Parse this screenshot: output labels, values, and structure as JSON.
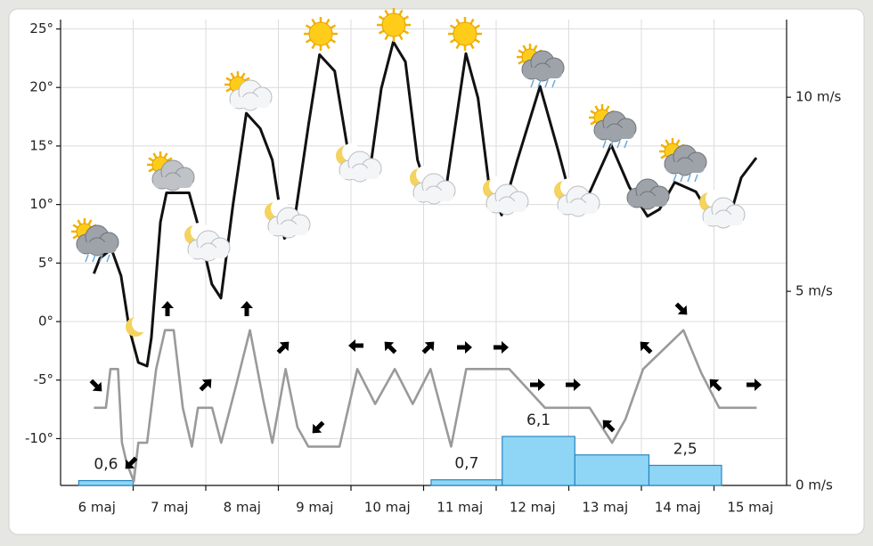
{
  "chart_data": {
    "type": "line",
    "xlim": [
      0,
      240
    ],
    "xticks": [
      {
        "value": 12,
        "label": "6 maj"
      },
      {
        "value": 36,
        "label": "7 maj"
      },
      {
        "value": 60,
        "label": "8 maj"
      },
      {
        "value": 84,
        "label": "9 maj"
      },
      {
        "value": 108,
        "label": "10 maj"
      },
      {
        "value": 132,
        "label": "11 maj"
      },
      {
        "value": 156,
        "label": "12 maj"
      },
      {
        "value": 180,
        "label": "13 maj"
      },
      {
        "value": 204,
        "label": "14 maj"
      },
      {
        "value": 228,
        "label": "15 maj"
      }
    ],
    "xgrid": [
      24,
      48,
      72,
      96,
      120,
      144,
      168,
      192,
      216
    ],
    "ylim": [
      -14,
      25.8
    ],
    "yticks": [
      {
        "value": 25,
        "label": "25°"
      },
      {
        "value": 20,
        "label": "20°"
      },
      {
        "value": 15,
        "label": "15°"
      },
      {
        "value": 10,
        "label": "10°"
      },
      {
        "value": 5,
        "label": "5°"
      },
      {
        "value": 0,
        "label": "0°"
      },
      {
        "value": -5,
        "label": "-5°"
      },
      {
        "value": -10,
        "label": "-10°"
      }
    ],
    "y2lim": [
      0,
      12
    ],
    "y2ticks": [
      {
        "value": 0,
        "label": "0 m/s"
      },
      {
        "value": 5,
        "label": "5 m/s"
      },
      {
        "value": 10,
        "label": "10 m/s"
      }
    ],
    "grid": true,
    "series": [
      {
        "name": "temperature",
        "color": "#111111",
        "x": [
          11,
          13,
          16.8,
          20,
          22.7,
          25.7,
          28.6,
          30,
          33,
          35,
          42.5,
          46,
          50,
          53,
          57,
          61.4,
          66,
          70,
          74,
          77,
          82,
          85.6,
          90.6,
          95,
          98,
          102,
          106,
          110,
          114,
          118,
          122.5,
          127.5,
          134,
          138,
          141.7,
          145.8,
          151,
          158.5,
          164.5,
          170,
          175,
          182,
          188,
          194,
          198,
          203,
          210,
          216,
          220.5,
          225,
          230
        ],
        "values": [
          4.1,
          5.4,
          6.2,
          3.9,
          -0.6,
          -3.5,
          -3.8,
          -1.4,
          8.5,
          11,
          11,
          7.7,
          3.2,
          2,
          10,
          17.8,
          16.5,
          13.8,
          7.1,
          8.1,
          16.9,
          22.8,
          21.4,
          14.6,
          12.1,
          12.4,
          19.9,
          23.9,
          22.2,
          13.8,
          10.2,
          11.5,
          22.9,
          19.1,
          11.5,
          9.1,
          13.8,
          20.1,
          14.6,
          9.2,
          11.1,
          15.1,
          11.5,
          9,
          9.6,
          11.9,
          11.1,
          8.5,
          8.3,
          12.3,
          14
        ]
      },
      {
        "name": "wind",
        "color": "#9a9a9a",
        "axis": "y2",
        "x": [
          11,
          15,
          16.5,
          19,
          20.3,
          21.8,
          24.2,
          25.7,
          28.6,
          31.6,
          34.5,
          37.4,
          40.4,
          43.4,
          45.4,
          50.1,
          53.1,
          58.1,
          62.6,
          67,
          70,
          74.4,
          78.3,
          81.9,
          92.2,
          98.1,
          104,
          110.5,
          116.4,
          122.3,
          129.1,
          134.1,
          148.3,
          160.1,
          174.9,
          182.3,
          186.7,
          192.6,
          205.9,
          211.8,
          217.7,
          230.1
        ],
        "values": [
          2,
          2,
          3,
          3,
          1.1,
          0.6,
          0.1,
          1.1,
          1.1,
          3,
          4,
          4,
          2,
          1,
          2,
          2,
          1.1,
          2.6,
          4,
          2.2,
          1.1,
          3,
          1.5,
          1,
          1,
          3,
          2.1,
          3,
          2.1,
          3,
          1,
          3,
          3,
          2,
          2,
          1.1,
          1.7,
          3,
          4,
          2.9,
          2,
          2
        ]
      }
    ],
    "precipitation": {
      "color": "#8fd6f6",
      "ylim": [
        0,
        58
      ],
      "start": [
        6,
        122.5,
        146,
        170,
        194.5
      ],
      "end": [
        24,
        146,
        170,
        194.5,
        218.5
      ],
      "values": [
        0.6,
        0.7,
        6.1,
        3.8,
        2.5
      ],
      "value_labels": [
        "0,6",
        "0,7",
        "6,1",
        null,
        "2,5"
      ]
    }
  }
}
